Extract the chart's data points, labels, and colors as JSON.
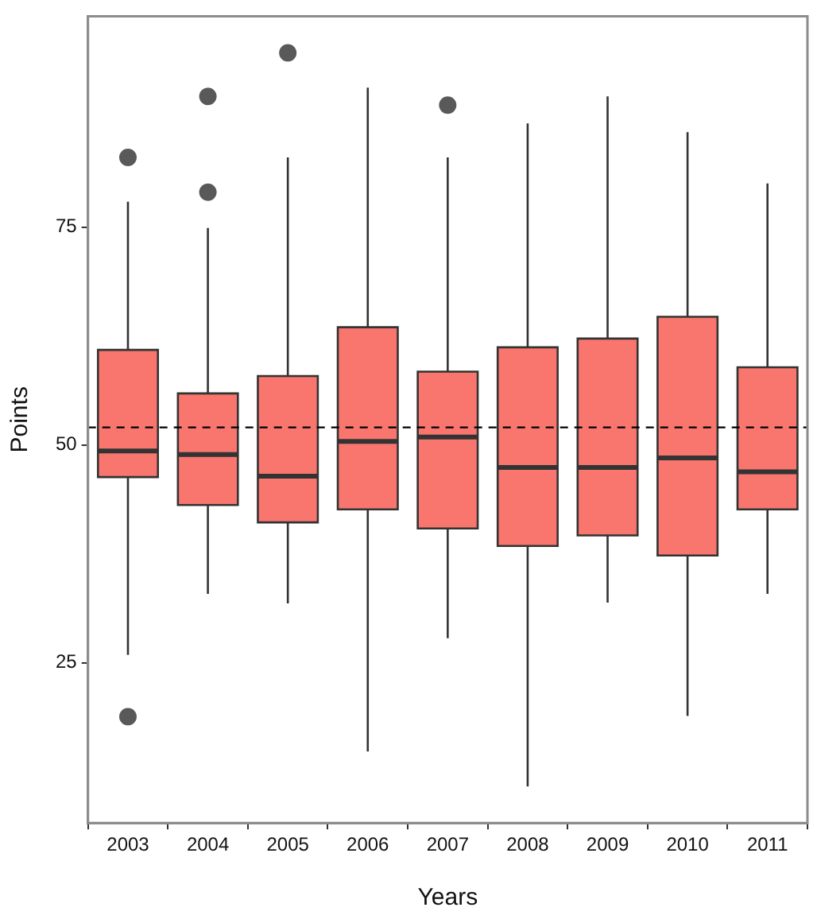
{
  "chart_data": {
    "type": "box",
    "xlabel": "Years",
    "ylabel": "Points",
    "color": "#f8766d",
    "categories": [
      "2003",
      "2004",
      "2005",
      "2006",
      "2007",
      "2008",
      "2009",
      "2010",
      "2011"
    ],
    "boxes": [
      {
        "low": 25.9,
        "q1": 46.3,
        "median": 49.3,
        "q3": 60.9,
        "high": 77.9,
        "outliers": [
          83,
          18.8
        ]
      },
      {
        "low": 32.9,
        "q1": 43.1,
        "median": 48.9,
        "q3": 55.9,
        "high": 74.9,
        "outliers": [
          90,
          79
        ]
      },
      {
        "low": 31.8,
        "q1": 41.1,
        "median": 46.4,
        "q3": 57.9,
        "high": 83,
        "outliers": [
          95
        ]
      },
      {
        "low": 14.8,
        "q1": 42.6,
        "median": 50.4,
        "q3": 63.5,
        "high": 91
      },
      {
        "low": 27.8,
        "q1": 40.4,
        "median": 50.9,
        "q3": 58.4,
        "high": 83,
        "outliers": [
          89
        ]
      },
      {
        "low": 10.8,
        "q1": 38.4,
        "median": 47.4,
        "q3": 61.2,
        "high": 86.9
      },
      {
        "low": 31.9,
        "q1": 39.6,
        "median": 47.4,
        "q3": 62.2,
        "high": 90
      },
      {
        "low": 18.9,
        "q1": 37.3,
        "median": 48.5,
        "q3": 64.7,
        "high": 85.9
      },
      {
        "low": 32.9,
        "q1": 42.6,
        "median": 46.9,
        "q3": 58.9,
        "high": 80
      }
    ],
    "ylim": [
      6.6,
      99.2
    ],
    "yticks": [
      25,
      50,
      75
    ],
    "ref_lines": [
      {
        "axis": "y",
        "value": 52,
        "line_style": "dashed",
        "color": "#000000"
      }
    ]
  }
}
